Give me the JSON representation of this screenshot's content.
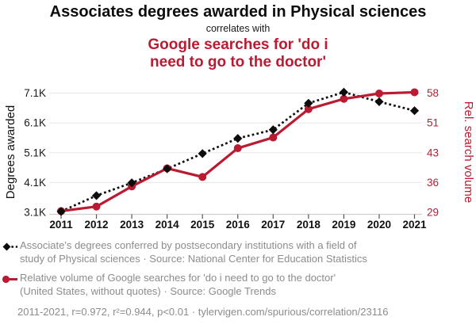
{
  "colors": {
    "red": "#bb1b32",
    "black": "#0d0d0d",
    "gray_text": "#8c8c8c",
    "gridline": "#e7e7e7",
    "axis_line": "#cfcfcf",
    "tick_mark": "#555555"
  },
  "header": {
    "title": "Associates degrees awarded in Physical sciences",
    "correlates_label": "correlates with",
    "red_title": "Google searches for 'do i\nneed to go to the doctor'"
  },
  "chart_data": {
    "type": "line",
    "title": "Associates degrees awarded in Physical sciences",
    "subtitle": "correlates with",
    "secondary_title": "Google searches for 'do i need to go to the doctor'",
    "categories": [
      "2011",
      "2012",
      "2013",
      "2014",
      "2015",
      "2016",
      "2017",
      "2018",
      "2019",
      "2020",
      "2021"
    ],
    "series": [
      {
        "name": "Associate's degrees awarded in Physical sciences",
        "axis": "left",
        "style": "dashed-diamond",
        "color": "#0d0d0d",
        "values": [
          3130,
          3660,
          4090,
          4560,
          5070,
          5580,
          5870,
          6760,
          7130,
          6810,
          6510
        ]
      },
      {
        "name": "Google searches for 'do i need to go to the doctor'",
        "axis": "right",
        "style": "solid-circle",
        "color": "#bb1b32",
        "values": [
          29.3,
          30.4,
          35.3,
          39.7,
          37.6,
          44.6,
          47.2,
          54.1,
          56.6,
          57.9,
          58.2
        ]
      }
    ],
    "left_axis": {
      "label": "Degrees awarded",
      "ticks": [
        "3.1K",
        "4.1K",
        "5.1K",
        "6.1K",
        "7.1K"
      ],
      "range": [
        3100,
        7100
      ]
    },
    "right_axis": {
      "label": "Rel. search volume",
      "ticks": [
        "29",
        "36",
        "43",
        "51",
        "58"
      ],
      "range": [
        29,
        58
      ]
    },
    "grid": true,
    "legend_position": "bottom"
  },
  "legend": {
    "entries": [
      {
        "marker": "black-diamond-dashed",
        "text": "Associate's degrees conferred by postsecondary institutions with a field of\nstudy of Physical sciences · Source: National Center for Education Statistics"
      },
      {
        "marker": "red-circle-solid",
        "text": "Relative volume of Google searches for 'do i need to go to the doctor'\n(United States, without quotes) · Source: Google Trends"
      }
    ]
  },
  "footer": {
    "stats_line": "2011-2021, r=0.972, r²=0.944, p<0.01 · tylervigen.com/spurious/correlation/23116"
  }
}
